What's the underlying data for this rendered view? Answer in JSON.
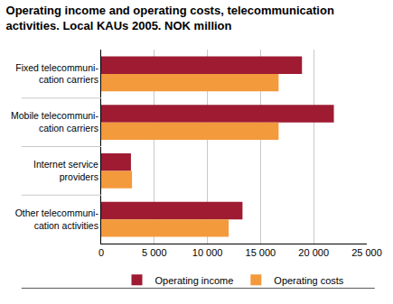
{
  "chart_data": {
    "type": "bar",
    "orientation": "horizontal",
    "title": "Operating income and operating costs, telecommunication\nactivities. Local KAUs 2005. NOK million",
    "categories": [
      "Fixed telecommuni-\ncation carriers",
      "Mobile telecommuni-\ncation carriers",
      "Internet service\nproviders",
      "Other telecommuni-\ncation activities"
    ],
    "series": [
      {
        "name": "Operating income",
        "color": "#9e1b32",
        "values": [
          18900,
          21900,
          2800,
          13300
        ]
      },
      {
        "name": "Operating costs",
        "color": "#f39a3d",
        "values": [
          16700,
          16700,
          2900,
          12000
        ]
      }
    ],
    "xlim": [
      0,
      25000
    ],
    "xticks": [
      0,
      {
        "value": 5000,
        "label": "5 000"
      },
      {
        "value": 10000,
        "label": "10 000"
      },
      {
        "value": 15000,
        "label": "15 000"
      },
      {
        "value": 20000,
        "label": "20 000"
      },
      {
        "value": 25000,
        "label": "25 000"
      }
    ],
    "grid": true,
    "legend": "bottom"
  }
}
